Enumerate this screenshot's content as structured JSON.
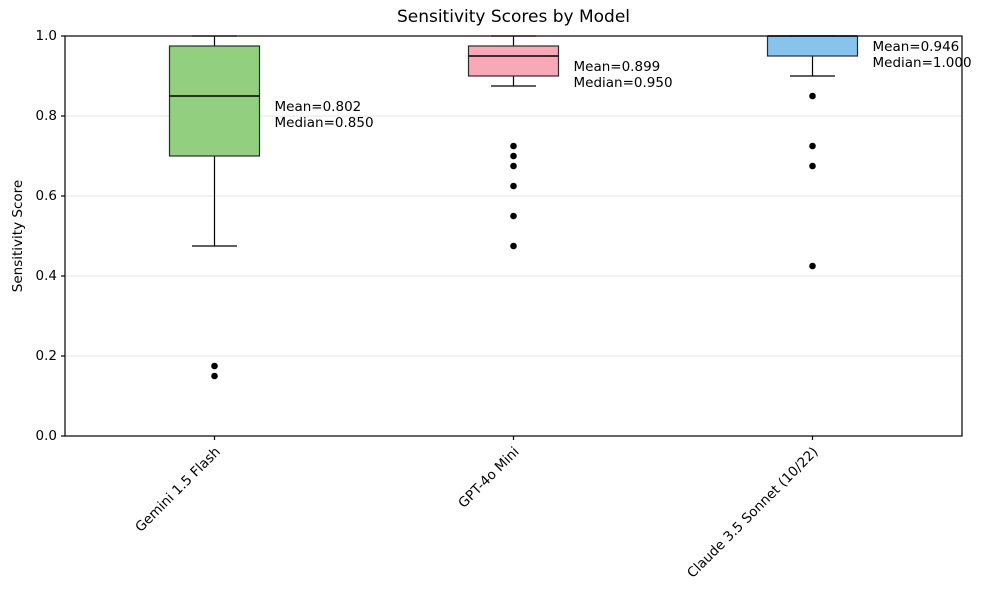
{
  "figure": {
    "title": "Sensitivity Scores by Model",
    "ylabel": "Sensitivity Score"
  },
  "chart_data": {
    "type": "box",
    "title": "Sensitivity Scores by Model",
    "xlabel": "",
    "ylabel": "Sensitivity Score",
    "ylim": [
      0.0,
      1.0
    ],
    "yticks": [
      0.0,
      0.2,
      0.4,
      0.6,
      0.8,
      1.0
    ],
    "grid": "horizontal-light-gray",
    "gridline_color": "#e5e5e5",
    "categories": [
      "Gemini 1.5 Flash",
      "GPT-4o Mini",
      "Claude 3.5 Sonnet (10/22)"
    ],
    "series": [
      {
        "model": "Gemini 1.5 Flash",
        "box_color": "#92cf7f",
        "stats": {
          "whisker_low": 0.475,
          "q1": 0.7,
          "median": 0.85,
          "q3": 0.975,
          "whisker_high": 1.0,
          "mean": 0.802
        },
        "outliers": [
          0.175,
          0.15
        ],
        "annotation_lines": [
          "Mean=0.802",
          "Median=0.850"
        ]
      },
      {
        "model": "GPT-4o Mini",
        "box_color": "#f9a8b8",
        "stats": {
          "whisker_low": 0.875,
          "q1": 0.9,
          "median": 0.95,
          "q3": 0.975,
          "whisker_high": 1.0,
          "mean": 0.899
        },
        "outliers": [
          0.725,
          0.7,
          0.675,
          0.625,
          0.55,
          0.475
        ],
        "annotation_lines": [
          "Mean=0.899",
          "Median=0.950"
        ]
      },
      {
        "model": "Claude 3.5 Sonnet (10/22)",
        "box_color": "#87c3ec",
        "stats": {
          "whisker_low": 0.9,
          "q1": 0.95,
          "median": 1.0,
          "q3": 1.0,
          "whisker_high": 1.0,
          "mean": 0.946
        },
        "outliers": [
          0.85,
          0.725,
          0.675,
          0.425
        ],
        "annotation_lines": [
          "Mean=0.946",
          "Median=1.000"
        ]
      }
    ]
  }
}
